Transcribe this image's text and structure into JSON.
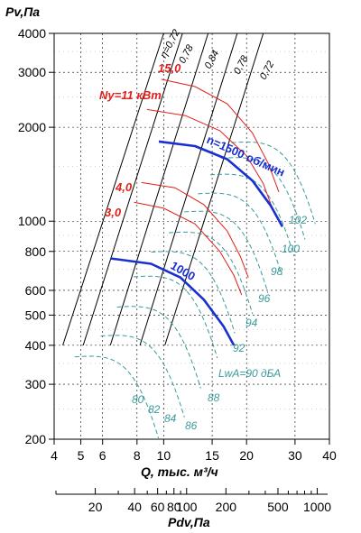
{
  "chart_data": {
    "type": "line",
    "ylabel": "Pv,Па",
    "xlabel": "Q, тыс. м³/ч",
    "x2label": "Pdv,Па",
    "x_scale": "log",
    "y_scale": "log",
    "xlim": [
      4,
      40
    ],
    "ylim": [
      200,
      4000
    ],
    "x_ticks": [
      4,
      5,
      6,
      8,
      10,
      15,
      20,
      30,
      40
    ],
    "y_ticks": [
      200,
      300,
      400,
      500,
      600,
      800,
      1000,
      2000,
      3000,
      4000
    ],
    "x2_ticks": [
      20,
      40,
      60,
      80,
      100,
      200,
      500,
      1000
    ],
    "grid": true,
    "speed_curves": [
      {
        "label": "n=1500 об/мин",
        "points": [
          [
            9.6,
            1800
          ],
          [
            13,
            1740
          ],
          [
            17,
            1580
          ],
          [
            21,
            1350
          ],
          [
            24.5,
            1120
          ],
          [
            27,
            960
          ]
        ]
      },
      {
        "label": "1000",
        "points": [
          [
            6.4,
            760
          ],
          [
            9,
            730
          ],
          [
            11.5,
            660
          ],
          [
            14,
            560
          ],
          [
            16.5,
            460
          ],
          [
            18,
            400
          ]
        ]
      }
    ],
    "power_curves": [
      {
        "label": "15,0",
        "points": [
          [
            9.8,
            2850
          ],
          [
            13,
            2700
          ],
          [
            17,
            2380
          ],
          [
            21,
            1920
          ],
          [
            24,
            1530
          ],
          [
            26.2,
            1240
          ]
        ]
      },
      {
        "label": "Ny=11 кВт",
        "points": [
          [
            8.7,
            2280
          ],
          [
            12,
            2180
          ],
          [
            16,
            1950
          ],
          [
            20,
            1620
          ],
          [
            23,
            1320
          ],
          [
            24.8,
            1100
          ]
        ]
      },
      {
        "label": "4,0",
        "points": [
          [
            8.3,
            1330
          ],
          [
            11,
            1280
          ],
          [
            14,
            1130
          ],
          [
            17,
            930
          ],
          [
            19,
            770
          ],
          [
            20.3,
            660
          ]
        ]
      },
      {
        "label": "3,0",
        "points": [
          [
            7.8,
            1150
          ],
          [
            10,
            1100
          ],
          [
            13,
            980
          ],
          [
            16,
            800
          ],
          [
            18,
            670
          ],
          [
            19.2,
            580
          ]
        ]
      }
    ],
    "efficiency_lines": [
      {
        "label": "η=0,72",
        "points": [
          [
            4.3,
            400
          ],
          [
            10,
            4000
          ]
        ]
      },
      {
        "label": "0,78",
        "points": [
          [
            5.1,
            400
          ],
          [
            11.7,
            4000
          ]
        ]
      },
      {
        "label": "0,84",
        "points": [
          [
            6.4,
            400
          ],
          [
            14.5,
            4000
          ]
        ]
      },
      {
        "label": "0,78",
        "points": [
          [
            8.2,
            400
          ],
          [
            18.5,
            4000
          ]
        ]
      },
      {
        "label": "0,72",
        "points": [
          [
            10.1,
            400
          ],
          [
            23,
            4000
          ]
        ]
      }
    ],
    "noise_labels": [
      "80",
      "82",
      "84",
      "86",
      "88",
      "92",
      "94",
      "96",
      "98",
      "100",
      "102"
    ],
    "noise_title": "LwA=90 дБА"
  }
}
